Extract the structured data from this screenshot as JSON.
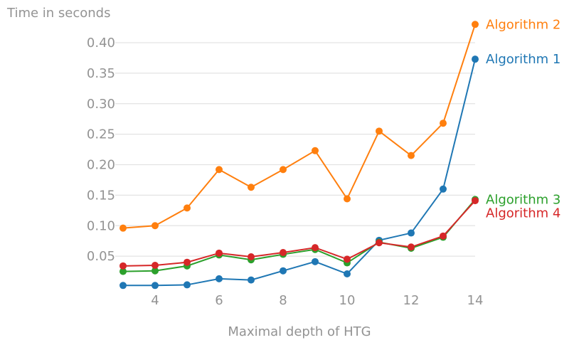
{
  "chart_data": {
    "type": "line",
    "title": "",
    "xlabel": "Maximal depth of HTG",
    "ylabel": "Time in seconds",
    "x": [
      3,
      4,
      5,
      6,
      7,
      8,
      9,
      10,
      11,
      12,
      13,
      14
    ],
    "xlim": [
      3,
      14
    ],
    "ylim": [
      0.0,
      0.435
    ],
    "xticks": [
      4,
      6,
      8,
      10,
      12,
      14
    ],
    "yticks": [
      "0.05",
      "0.10",
      "0.15",
      "0.20",
      "0.25",
      "0.30",
      "0.35",
      "0.40"
    ],
    "grid": "horizontal",
    "legend": "labels at line ends",
    "series": [
      {
        "name": "Algorithm 1",
        "color": "#1f77b4",
        "values": [
          0.002,
          0.002,
          0.003,
          0.013,
          0.011,
          0.026,
          0.041,
          0.021,
          0.076,
          0.088,
          0.16,
          0.373
        ]
      },
      {
        "name": "Algorithm 2",
        "color": "#ff7f0e",
        "values": [
          0.096,
          0.1,
          0.129,
          0.192,
          0.163,
          0.192,
          0.223,
          0.144,
          0.255,
          0.215,
          0.268,
          0.43
        ]
      },
      {
        "name": "Algorithm 3",
        "color": "#2ca02c",
        "values": [
          0.025,
          0.026,
          0.034,
          0.052,
          0.044,
          0.053,
          0.061,
          0.039,
          0.073,
          0.063,
          0.081,
          0.143
        ]
      },
      {
        "name": "Algorithm 4",
        "color": "#d62728",
        "values": [
          0.034,
          0.035,
          0.04,
          0.055,
          0.049,
          0.056,
          0.064,
          0.045,
          0.072,
          0.065,
          0.083,
          0.141
        ]
      }
    ]
  }
}
